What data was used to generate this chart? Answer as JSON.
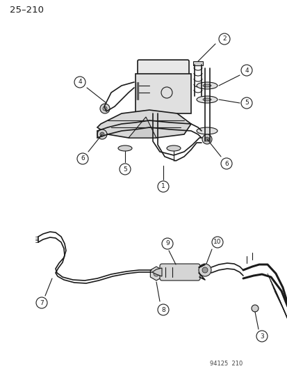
{
  "bg_color": "#ffffff",
  "page_num": "25–210",
  "watermark": "94125  210",
  "fig_width": 4.14,
  "fig_height": 5.33,
  "dpi": 100,
  "ink": "#1a1a1a",
  "gray": "#666666"
}
